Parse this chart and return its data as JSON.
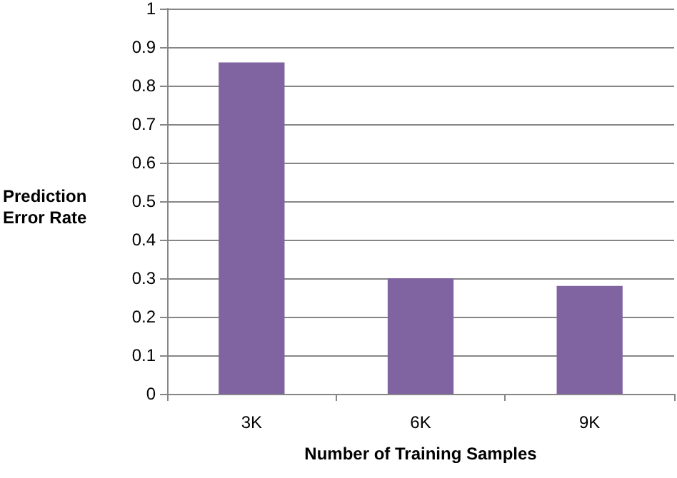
{
  "chart_data": {
    "type": "bar",
    "xlabel": "Number of Training Samples",
    "ylabel": "Prediction Error Rate",
    "categories": [
      "3K",
      "6K",
      "9K"
    ],
    "values": [
      0.86,
      0.3,
      0.28
    ],
    "color": "#8064a2",
    "ylim": [
      0,
      1
    ],
    "yticks": [
      0,
      0.1,
      0.2,
      0.3,
      0.4,
      0.5,
      0.6,
      0.7,
      0.8,
      0.9,
      1
    ],
    "grid": "y"
  }
}
